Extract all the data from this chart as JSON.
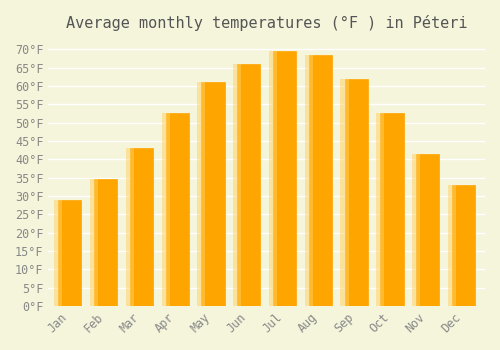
{
  "title": "Average monthly temperatures (°F ) in Péteri",
  "months": [
    "Jan",
    "Feb",
    "Mar",
    "Apr",
    "May",
    "Jun",
    "Jul",
    "Aug",
    "Sep",
    "Oct",
    "Nov",
    "Dec"
  ],
  "values": [
    29,
    34.5,
    43,
    52.5,
    61,
    66,
    69.5,
    68.5,
    62,
    52.5,
    41.5,
    33
  ],
  "bar_color": "#FFA500",
  "bar_edge_color": "#FFC04D",
  "ylim": [
    0,
    72
  ],
  "yticks": [
    0,
    5,
    10,
    15,
    20,
    25,
    30,
    35,
    40,
    45,
    50,
    55,
    60,
    65,
    70
  ],
  "background_color": "#F5F5DC",
  "grid_color": "#FFFFFF",
  "title_fontsize": 11,
  "tick_fontsize": 8.5
}
